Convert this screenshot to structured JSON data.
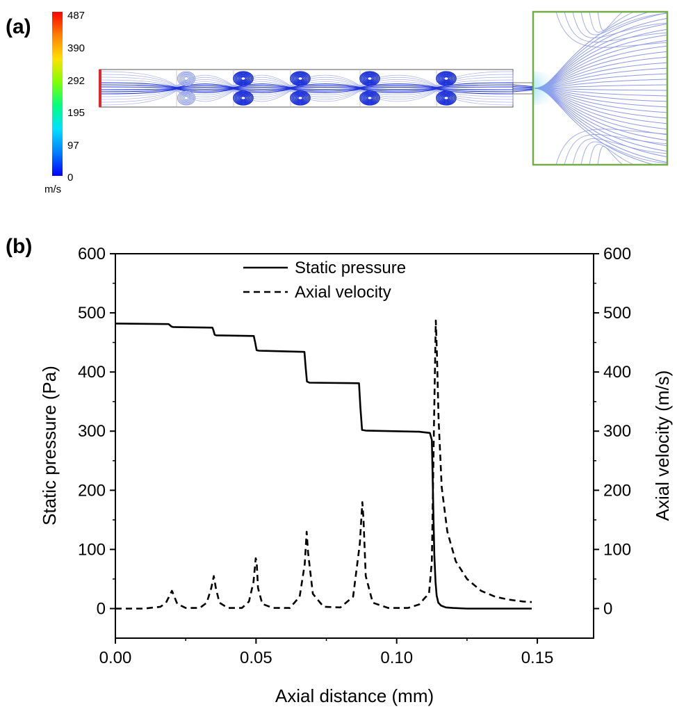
{
  "panel_a": {
    "label": "(a)",
    "colorbar": {
      "unit": "m/s",
      "ticks": [
        "487",
        "390",
        "292",
        "195",
        "97",
        "0"
      ],
      "colors": [
        "#0000ff",
        "#0080ff",
        "#00e0ff",
        "#00ff80",
        "#80ff00",
        "#ffe000",
        "#ff8000",
        "#ff0000"
      ]
    },
    "colors": {
      "inlet": "#e8262a",
      "outlet_box": "#70ad47",
      "streamline": "#1a2fd8",
      "streamline_light": "#8a98e8",
      "wall": "#555555"
    }
  },
  "panel_b": {
    "label": "(b)"
  },
  "chart_data": {
    "type": "line",
    "title": "",
    "xlabel": "Axial distance (mm)",
    "ylabel": "Static pressure (Pa)",
    "y2label": "Axial velocity (m/s)",
    "xlim": [
      0.0,
      0.17
    ],
    "ylim": [
      -50,
      600
    ],
    "y2lim": [
      -50,
      600
    ],
    "xticks": [
      0.0,
      0.05,
      0.1,
      0.15
    ],
    "xtick_labels": [
      "0.00",
      "0.05",
      "0.10",
      "0.15"
    ],
    "yticks": [
      0,
      100,
      200,
      300,
      400,
      500,
      600
    ],
    "ytick_labels": [
      "0",
      "100",
      "200",
      "300",
      "400",
      "500",
      "600"
    ],
    "y2ticks": [
      0,
      100,
      200,
      300,
      400,
      500,
      600
    ],
    "y2tick_labels": [
      "0",
      "100",
      "200",
      "300",
      "400",
      "500",
      "600"
    ],
    "legend_position": "top-center",
    "series": [
      {
        "name": "Static pressure",
        "style": "solid",
        "axis": "left",
        "x": [
          0.0,
          0.0189,
          0.0192,
          0.0199,
          0.0205,
          0.0345,
          0.0349,
          0.0353,
          0.0359,
          0.0492,
          0.0497,
          0.0502,
          0.051,
          0.0672,
          0.0676,
          0.0681,
          0.069,
          0.0866,
          0.0871,
          0.0877,
          0.089,
          0.108,
          0.1118,
          0.1125,
          0.1128,
          0.1131,
          0.1134,
          0.1138,
          0.1142,
          0.1148,
          0.1158,
          0.1175,
          0.12,
          0.125,
          0.148
        ],
        "values": [
          482,
          481,
          480,
          477,
          476,
          475,
          470,
          463,
          462,
          461,
          450,
          437,
          436,
          434,
          410,
          384,
          382,
          381,
          340,
          302,
          301,
          299,
          297,
          285,
          220,
          150,
          90,
          45,
          22,
          10,
          5,
          2,
          1,
          0,
          0
        ]
      },
      {
        "name": "Axial velocity",
        "style": "dashed",
        "axis": "right",
        "x": [
          0.0,
          0.01,
          0.016,
          0.018,
          0.0193,
          0.0201,
          0.0208,
          0.022,
          0.025,
          0.03,
          0.0325,
          0.0341,
          0.035,
          0.0357,
          0.037,
          0.04,
          0.045,
          0.0475,
          0.0491,
          0.0499,
          0.0502,
          0.0507,
          0.0522,
          0.056,
          0.062,
          0.0655,
          0.0673,
          0.068,
          0.0685,
          0.0702,
          0.074,
          0.08,
          0.0845,
          0.0869,
          0.0878,
          0.0882,
          0.089,
          0.0915,
          0.097,
          0.104,
          0.108,
          0.11,
          0.1115,
          0.1125,
          0.1133,
          0.1139,
          0.1143,
          0.1149,
          0.116,
          0.118,
          0.121,
          0.125,
          0.13,
          0.135,
          0.14,
          0.145,
          0.148
        ],
        "values": [
          0,
          0,
          3,
          10,
          22,
          30,
          22,
          8,
          1,
          1,
          10,
          35,
          55,
          35,
          10,
          1,
          1,
          12,
          45,
          85,
          80,
          35,
          8,
          1,
          1,
          20,
          75,
          130,
          95,
          25,
          3,
          2,
          20,
          110,
          180,
          150,
          55,
          10,
          1,
          1,
          7,
          18,
          25,
          80,
          320,
          487,
          430,
          320,
          205,
          130,
          80,
          50,
          30,
          20,
          15,
          12,
          11
        ]
      }
    ]
  }
}
